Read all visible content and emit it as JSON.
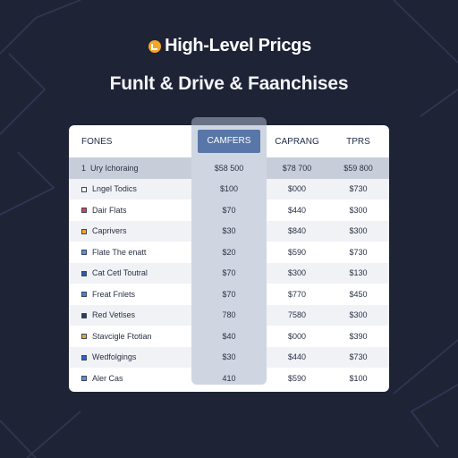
{
  "brand": {
    "title": "High-Level Pricgs",
    "logo_icon": "brand-logo-icon",
    "logo_color": "#f3a629"
  },
  "subtitle": "Funlt & Drive & Faanchises",
  "table": {
    "columns": [
      "FONES",
      "CAMFERS",
      "CAPRANG",
      "TPRS"
    ],
    "featured_column": 1,
    "group_row": {
      "label": "Ury Ichoraing",
      "marker": "1",
      "values": [
        "$58 500",
        "$78 700",
        "$59 800"
      ]
    },
    "rows": [
      {
        "label": "Lngel Todics",
        "chip_color": "#ffffff",
        "values": [
          "$100",
          "$000",
          "$730"
        ]
      },
      {
        "label": "Dair Flats",
        "chip_color": "#d8454f",
        "values": [
          "$70",
          "$440",
          "$300"
        ]
      },
      {
        "label": "Caprivers",
        "chip_color": "#f3a629",
        "values": [
          "$30",
          "$840",
          "$300"
        ]
      },
      {
        "label": "Flate The enatt",
        "chip_color": "#5b8fd6",
        "values": [
          "$20",
          "$590",
          "$730"
        ]
      },
      {
        "label": "Cat Cetl Toutral",
        "chip_color": "#2e5aa8",
        "values": [
          "$70",
          "$300",
          "$130"
        ]
      },
      {
        "label": "Freat Fnlets",
        "chip_color": "#4a7fce",
        "values": [
          "$70",
          "$770",
          "$450"
        ]
      },
      {
        "label": "Red Vetlses",
        "chip_color": "#2c3a56",
        "values": [
          "780",
          "7580",
          "$300"
        ]
      },
      {
        "label": "Stavcigle Ftotian",
        "chip_color": "#f3a629",
        "values": [
          "$40",
          "$000",
          "$390"
        ]
      },
      {
        "label": "Wedfolgings",
        "chip_color": "#2a63c9",
        "values": [
          "$30",
          "$440",
          "$730"
        ]
      },
      {
        "label": "Aler Cas",
        "chip_color": "#5b8fd6",
        "values": [
          "410",
          "$590",
          "$100"
        ]
      }
    ]
  },
  "colors": {
    "background": "#1e2336",
    "featured_header": "#5877a8",
    "group_row": "#c8ced9"
  }
}
